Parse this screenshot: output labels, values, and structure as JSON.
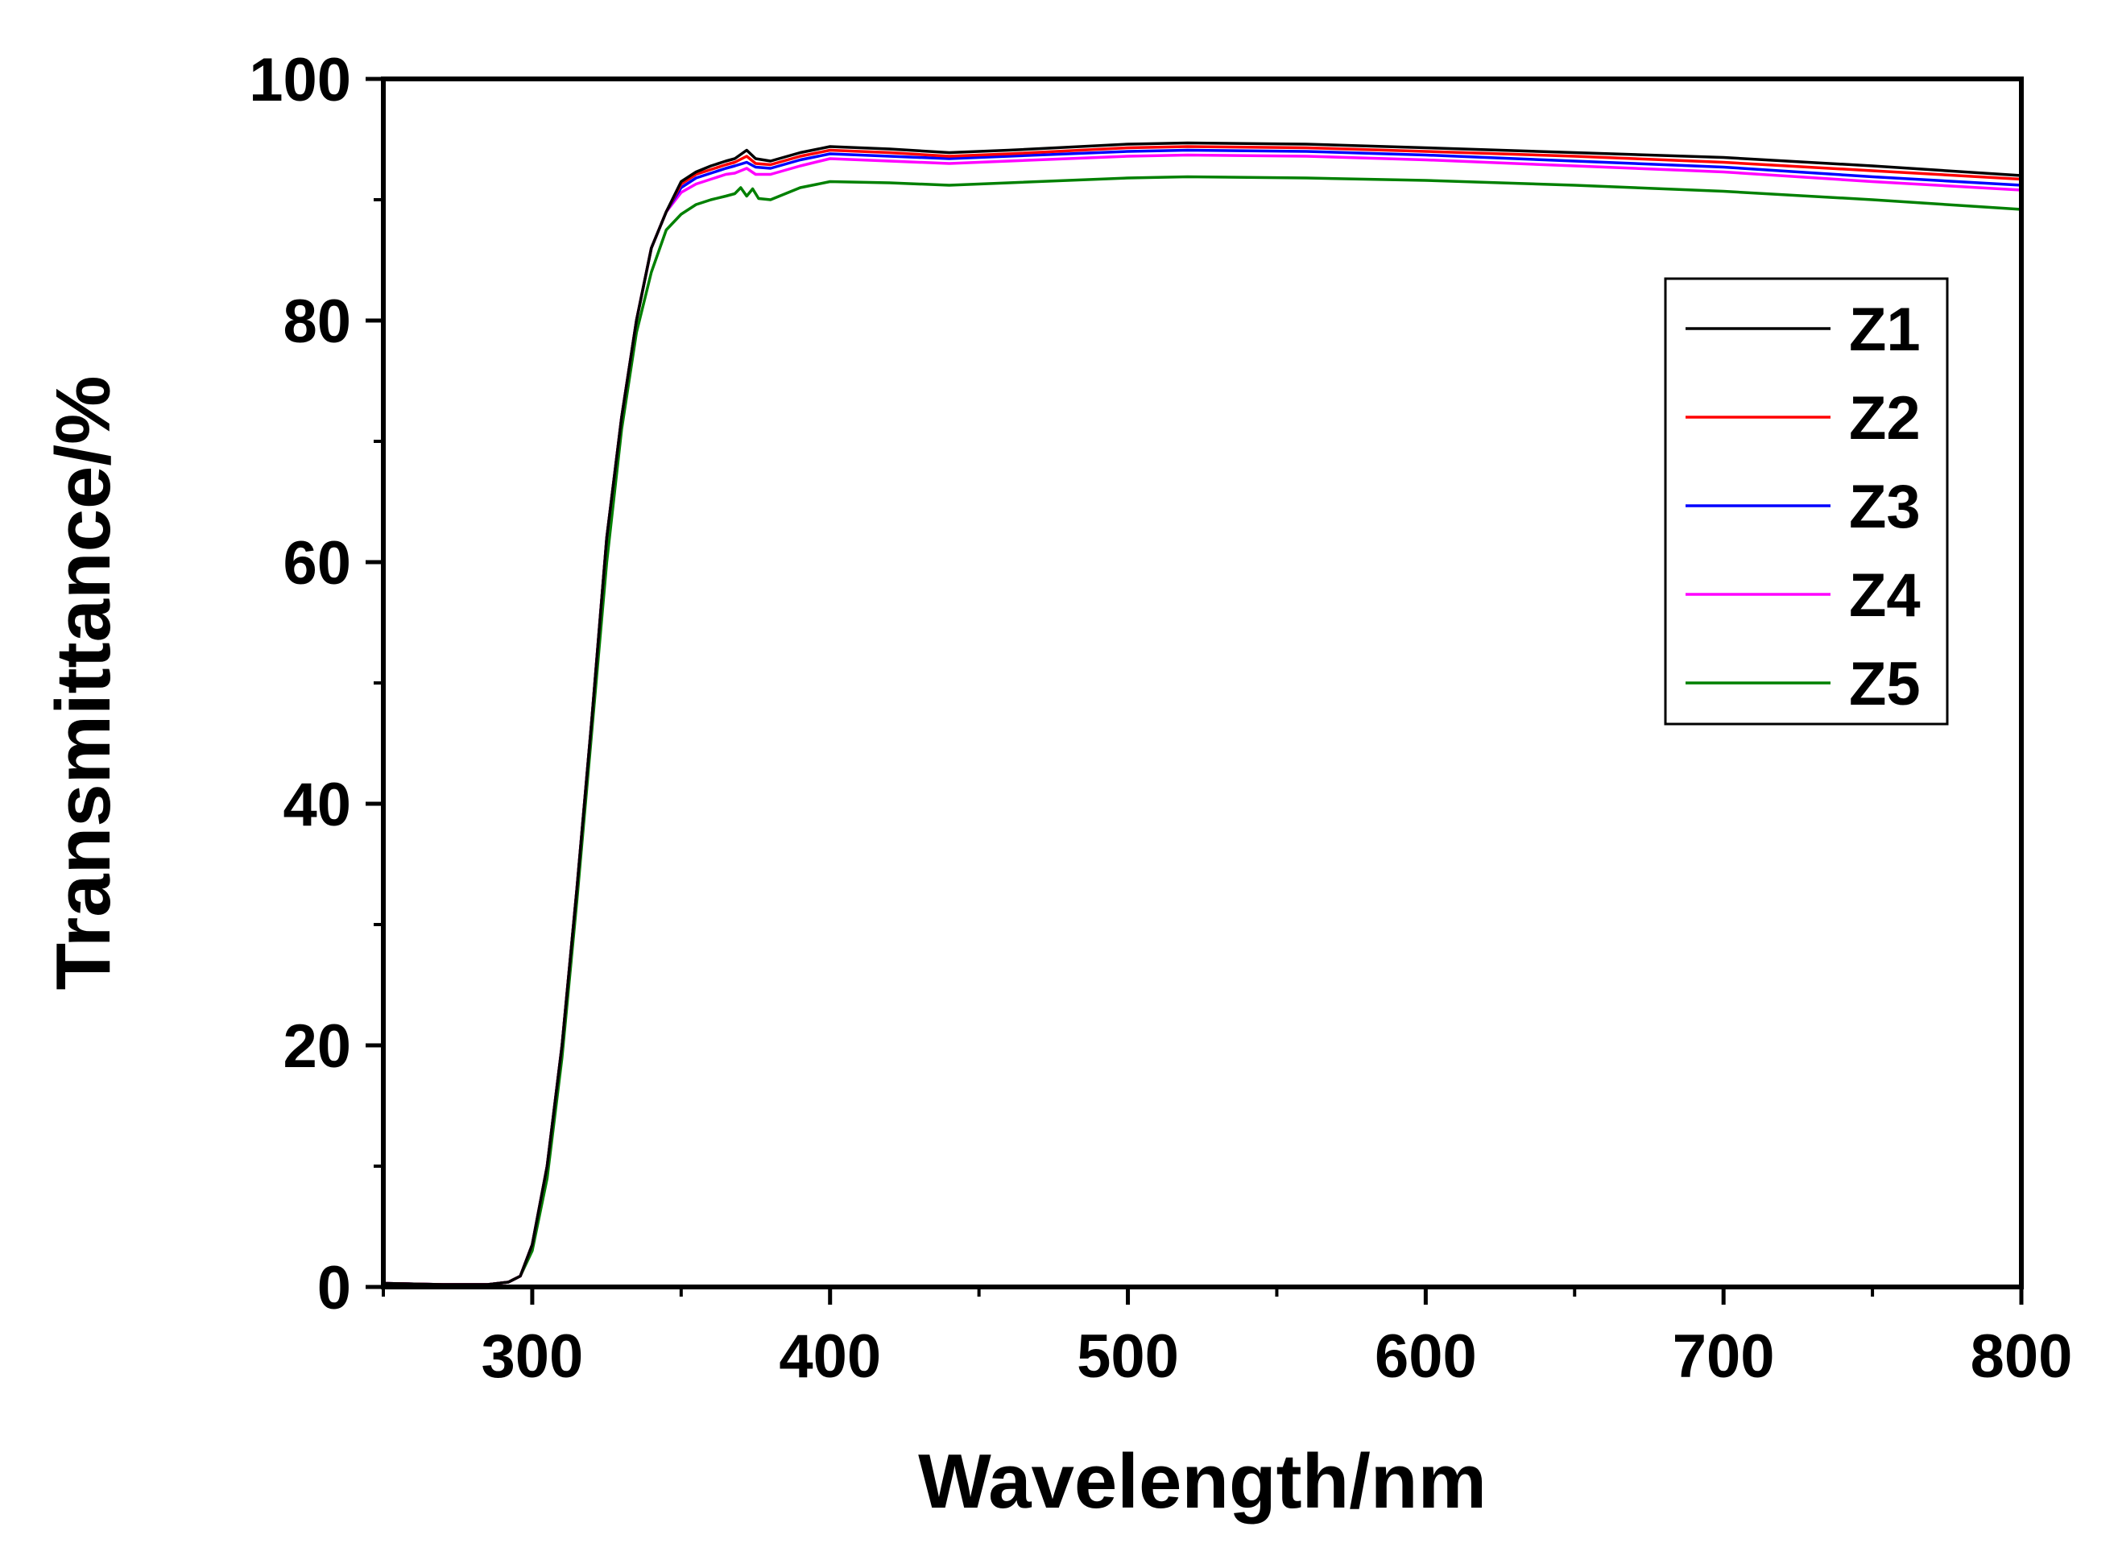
{
  "chart_data": {
    "type": "line",
    "title": "",
    "xlabel": "Wavelength/nm",
    "ylabel": "Transmittance/%",
    "xlim": [
      250,
      800
    ],
    "ylim": [
      0,
      100
    ],
    "x_ticks": [
      300,
      400,
      500,
      600,
      700,
      800
    ],
    "x_minor_ticks": [
      250,
      350,
      450,
      550,
      650,
      750
    ],
    "y_ticks": [
      0,
      20,
      40,
      60,
      80,
      100
    ],
    "y_minor_ticks": [
      10,
      30,
      50,
      70,
      90
    ],
    "x_tick_labels": [
      "300",
      "400",
      "500",
      "600",
      "700",
      "800"
    ],
    "y_tick_labels": [
      "0",
      "20",
      "40",
      "60",
      "80",
      "100"
    ],
    "grid": false,
    "legend": "top-right",
    "series": [
      {
        "name": "Z1",
        "color": "#000000",
        "x": [
          250,
          270,
          285,
          292,
          296,
          300,
          305,
          310,
          315,
          320,
          325,
          330,
          335,
          340,
          345,
          350,
          355,
          360,
          365,
          368,
          372,
          375,
          380,
          390,
          400,
          420,
          440,
          460,
          500,
          520,
          560,
          600,
          650,
          700,
          750,
          800
        ],
        "y": [
          0.3,
          0.2,
          0.2,
          0.4,
          0.9,
          3.5,
          10,
          20,
          33,
          47,
          62,
          72,
          80,
          86,
          89,
          91.5,
          92.3,
          92.8,
          93.2,
          93.4,
          94.1,
          93.4,
          93.2,
          93.9,
          94.4,
          94.2,
          93.9,
          94.1,
          94.6,
          94.7,
          94.6,
          94.3,
          93.9,
          93.5,
          92.8,
          92.0
        ]
      },
      {
        "name": "Z2",
        "color": "#ff0000",
        "x": [
          250,
          270,
          285,
          292,
          296,
          300,
          305,
          310,
          315,
          320,
          325,
          330,
          335,
          340,
          345,
          350,
          355,
          360,
          365,
          368,
          372,
          375,
          380,
          390,
          400,
          420,
          440,
          460,
          500,
          520,
          560,
          600,
          650,
          700,
          750,
          800
        ],
        "y": [
          0.3,
          0.2,
          0.2,
          0.4,
          0.9,
          3.5,
          10,
          20,
          33,
          47,
          62,
          72,
          80,
          86,
          89,
          91.3,
          92.1,
          92.5,
          92.9,
          93.1,
          93.6,
          93.0,
          92.9,
          93.6,
          94.1,
          93.9,
          93.6,
          93.8,
          94.3,
          94.4,
          94.3,
          94.0,
          93.6,
          93.1,
          92.4,
          91.7
        ]
      },
      {
        "name": "Z3",
        "color": "#0000ff",
        "x": [
          250,
          270,
          285,
          292,
          296,
          300,
          305,
          310,
          315,
          320,
          325,
          330,
          335,
          340,
          345,
          350,
          355,
          360,
          365,
          368,
          372,
          375,
          380,
          390,
          400,
          420,
          440,
          460,
          500,
          520,
          560,
          600,
          650,
          700,
          750,
          800
        ],
        "y": [
          0.3,
          0.2,
          0.2,
          0.4,
          0.9,
          3.5,
          10,
          20,
          33,
          47,
          62,
          72,
          80,
          86,
          89,
          91.0,
          91.8,
          92.2,
          92.6,
          92.8,
          93.1,
          92.7,
          92.6,
          93.3,
          93.8,
          93.6,
          93.4,
          93.6,
          94.0,
          94.1,
          94.0,
          93.7,
          93.2,
          92.7,
          91.9,
          91.2
        ]
      },
      {
        "name": "Z4",
        "color": "#ff00ff",
        "x": [
          250,
          270,
          285,
          292,
          296,
          300,
          305,
          310,
          315,
          320,
          325,
          330,
          335,
          340,
          345,
          350,
          355,
          360,
          365,
          368,
          372,
          375,
          380,
          390,
          400,
          420,
          440,
          460,
          500,
          520,
          560,
          600,
          650,
          700,
          750,
          800
        ],
        "y": [
          0.3,
          0.2,
          0.2,
          0.4,
          0.9,
          3.5,
          10,
          20,
          33,
          47,
          62,
          72,
          80,
          86,
          89,
          90.6,
          91.3,
          91.7,
          92.1,
          92.2,
          92.6,
          92.1,
          92.1,
          92.8,
          93.4,
          93.2,
          93.0,
          93.2,
          93.6,
          93.7,
          93.6,
          93.3,
          92.8,
          92.3,
          91.5,
          90.8
        ]
      },
      {
        "name": "Z5",
        "color": "#008000",
        "x": [
          250,
          270,
          285,
          292,
          296,
          300,
          305,
          310,
          315,
          320,
          325,
          330,
          335,
          340,
          345,
          350,
          355,
          360,
          365,
          368,
          370,
          372,
          374,
          376,
          380,
          390,
          400,
          420,
          440,
          460,
          500,
          520,
          560,
          600,
          650,
          700,
          750,
          800
        ],
        "y": [
          0.3,
          0.2,
          0.2,
          0.4,
          0.9,
          3.0,
          9,
          19,
          32,
          46,
          60,
          71,
          79,
          84,
          87.5,
          88.8,
          89.6,
          90.0,
          90.3,
          90.5,
          91.0,
          90.3,
          90.9,
          90.1,
          90.0,
          91.0,
          91.5,
          91.4,
          91.2,
          91.4,
          91.8,
          91.9,
          91.8,
          91.6,
          91.2,
          90.7,
          90.0,
          89.2
        ]
      }
    ]
  }
}
